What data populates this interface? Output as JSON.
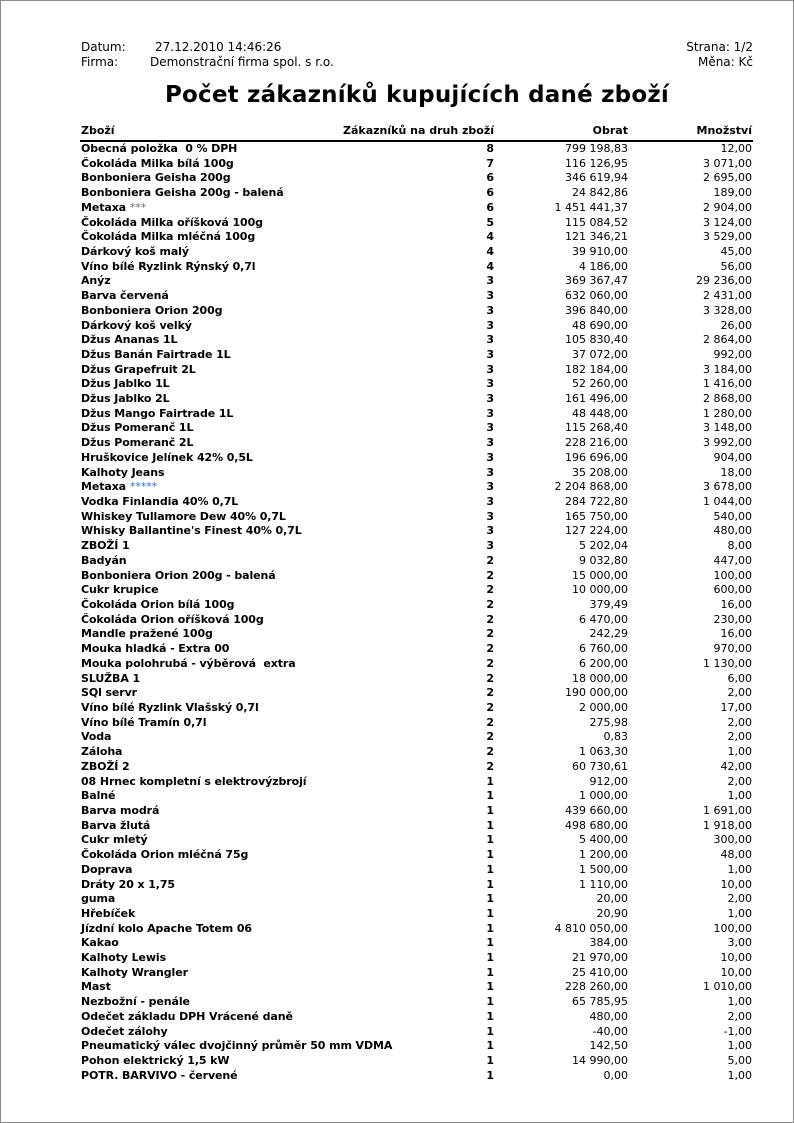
{
  "header": {
    "date_label": "Datum:",
    "date_value": "27.12.2010 14:46:26",
    "company_label": "Firma:",
    "company_value": "Demonstrační firma spol. s r.o.",
    "page": "Strana: 1/2",
    "currency": "Měna: Kč"
  },
  "title": "Počet zákazníků kupujících dané zboží",
  "columns": {
    "name": "Zboží",
    "customers": "Zákazníků na druh zboží",
    "turnover": "Obrat",
    "quantity": "Množství"
  },
  "colors": {
    "stars_gray": "#707070",
    "stars_blue": "#1f6fd0"
  },
  "rows": [
    {
      "name": "Obecná položka  0 % DPH",
      "count": "8",
      "turnover": "799 198,83",
      "qty": "12,00"
    },
    {
      "name": "Čokoláda Milka bílá 100g",
      "count": "7",
      "turnover": "116 126,95",
      "qty": "3 071,00"
    },
    {
      "name": "Bonboniera Geisha 200g",
      "count": "6",
      "turnover": "346 619,94",
      "qty": "2 695,00"
    },
    {
      "name": "Bonboniera Geisha 200g - balená",
      "count": "6",
      "turnover": "24 842,86",
      "qty": "189,00"
    },
    {
      "name": "Metaxa",
      "suffix": "***",
      "suffix_color": "gray",
      "count": "6",
      "turnover": "1 451 441,37",
      "qty": "2 904,00"
    },
    {
      "name": "Čokoláda Milka oříšková 100g",
      "count": "5",
      "turnover": "115 084,52",
      "qty": "3 124,00"
    },
    {
      "name": "Čokoláda Milka mléčná 100g",
      "count": "4",
      "turnover": "121 346,21",
      "qty": "3 529,00"
    },
    {
      "name": "Dárkový koš malý",
      "count": "4",
      "turnover": "39 910,00",
      "qty": "45,00"
    },
    {
      "name": "Víno bílé Ryzlink Rýnský 0,7l",
      "count": "4",
      "turnover": "4 186,00",
      "qty": "56,00"
    },
    {
      "name": "Anýz",
      "count": "3",
      "turnover": "369 367,47",
      "qty": "29 236,00"
    },
    {
      "name": "Barva červená",
      "count": "3",
      "turnover": "632 060,00",
      "qty": "2 431,00"
    },
    {
      "name": "Bonboniera Orion 200g",
      "count": "3",
      "turnover": "396 840,00",
      "qty": "3 328,00"
    },
    {
      "name": "Dárkový koš velký",
      "count": "3",
      "turnover": "48 690,00",
      "qty": "26,00"
    },
    {
      "name": "Džus Ananas 1L",
      "count": "3",
      "turnover": "105 830,40",
      "qty": "2 864,00"
    },
    {
      "name": "Džus Banán Fairtrade 1L",
      "count": "3",
      "turnover": "37 072,00",
      "qty": "992,00"
    },
    {
      "name": "Džus Grapefruit 2L",
      "count": "3",
      "turnover": "182 184,00",
      "qty": "3 184,00"
    },
    {
      "name": "Džus Jablko 1L",
      "count": "3",
      "turnover": "52 260,00",
      "qty": "1 416,00"
    },
    {
      "name": "Džus Jablko 2L",
      "count": "3",
      "turnover": "161 496,00",
      "qty": "2 868,00"
    },
    {
      "name": "Džus Mango Fairtrade 1L",
      "count": "3",
      "turnover": "48 448,00",
      "qty": "1 280,00"
    },
    {
      "name": "Džus Pomeranč 1L",
      "count": "3",
      "turnover": "115 268,40",
      "qty": "3 148,00"
    },
    {
      "name": "Džus Pomeranč 2L",
      "count": "3",
      "turnover": "228 216,00",
      "qty": "3 992,00"
    },
    {
      "name": "Hruškovice Jelínek 42% 0,5L",
      "count": "3",
      "turnover": "196 696,00",
      "qty": "904,00"
    },
    {
      "name": "Kalhoty Jeans",
      "count": "3",
      "turnover": "35 208,00",
      "qty": "18,00"
    },
    {
      "name": "Metaxa",
      "suffix": "*****",
      "suffix_color": "blue",
      "count": "3",
      "turnover": "2 204 868,00",
      "qty": "3 678,00"
    },
    {
      "name": "Vodka Finlandia 40% 0,7L",
      "count": "3",
      "turnover": "284 722,80",
      "qty": "1 044,00"
    },
    {
      "name": "Whiskey Tullamore Dew 40% 0,7L",
      "count": "3",
      "turnover": "165 750,00",
      "qty": "540,00"
    },
    {
      "name": "Whisky Ballantine's Finest 40% 0,7L",
      "count": "3",
      "turnover": "127 224,00",
      "qty": "480,00"
    },
    {
      "name": "ZBOŽÍ 1",
      "count": "3",
      "turnover": "5 202,04",
      "qty": "8,00"
    },
    {
      "name": "Badyán",
      "count": "2",
      "turnover": "9 032,80",
      "qty": "447,00"
    },
    {
      "name": "Bonboniera Orion 200g - balená",
      "count": "2",
      "turnover": "15 000,00",
      "qty": "100,00"
    },
    {
      "name": "Cukr krupice",
      "count": "2",
      "turnover": "10 000,00",
      "qty": "600,00"
    },
    {
      "name": "Čokoláda Orion bílá 100g",
      "count": "2",
      "turnover": "379,49",
      "qty": "16,00"
    },
    {
      "name": "Čokoláda Orion oříšková 100g",
      "count": "2",
      "turnover": "6 470,00",
      "qty": "230,00"
    },
    {
      "name": "Mandle pražené 100g",
      "count": "2",
      "turnover": "242,29",
      "qty": "16,00"
    },
    {
      "name": "Mouka hladká - Extra 00",
      "count": "2",
      "turnover": "6 760,00",
      "qty": "970,00"
    },
    {
      "name": "Mouka polohrubá - výběrová  extra",
      "count": "2",
      "turnover": "6 200,00",
      "qty": "1 130,00"
    },
    {
      "name": "SLUŽBA 1",
      "count": "2",
      "turnover": "18 000,00",
      "qty": "6,00"
    },
    {
      "name": "SQl servr",
      "count": "2",
      "turnover": "190 000,00",
      "qty": "2,00"
    },
    {
      "name": "Víno bílé Ryzlink Vlašský 0,7l",
      "count": "2",
      "turnover": "2 000,00",
      "qty": "17,00"
    },
    {
      "name": "Víno bílé Tramín 0,7l",
      "count": "2",
      "turnover": "275,98",
      "qty": "2,00"
    },
    {
      "name": "Voda",
      "count": "2",
      "turnover": "0,83",
      "qty": "2,00"
    },
    {
      "name": "Záloha",
      "count": "2",
      "turnover": "1 063,30",
      "qty": "1,00"
    },
    {
      "name": "ZBOŽÍ 2",
      "count": "2",
      "turnover": "60 730,61",
      "qty": "42,00"
    },
    {
      "name": "08 Hrnec kompletní s elektrovýzbrojí",
      "count": "1",
      "turnover": "912,00",
      "qty": "2,00"
    },
    {
      "name": "Balné",
      "count": "1",
      "turnover": "1 000,00",
      "qty": "1,00"
    },
    {
      "name": "Barva modrá",
      "count": "1",
      "turnover": "439 660,00",
      "qty": "1 691,00"
    },
    {
      "name": "Barva žlutá",
      "count": "1",
      "turnover": "498 680,00",
      "qty": "1 918,00"
    },
    {
      "name": "Cukr mletý",
      "count": "1",
      "turnover": "5 400,00",
      "qty": "300,00"
    },
    {
      "name": "Čokoláda Orion mléčná 75g",
      "count": "1",
      "turnover": "1 200,00",
      "qty": "48,00"
    },
    {
      "name": "Doprava",
      "count": "1",
      "turnover": "1 500,00",
      "qty": "1,00"
    },
    {
      "name": "Dráty 20 x 1,75",
      "count": "1",
      "turnover": "1 110,00",
      "qty": "10,00"
    },
    {
      "name": "guma",
      "count": "1",
      "turnover": "20,00",
      "qty": "2,00"
    },
    {
      "name": "Hřebíček",
      "count": "1",
      "turnover": "20,90",
      "qty": "1,00"
    },
    {
      "name": "Jízdní kolo Apache Totem 06",
      "count": "1",
      "turnover": "4 810 050,00",
      "qty": "100,00"
    },
    {
      "name": "Kakao",
      "count": "1",
      "turnover": "384,00",
      "qty": "3,00"
    },
    {
      "name": "Kalhoty Lewis",
      "count": "1",
      "turnover": "21 970,00",
      "qty": "10,00"
    },
    {
      "name": "Kalhoty Wrangler",
      "count": "1",
      "turnover": "25 410,00",
      "qty": "10,00"
    },
    {
      "name": "Mast",
      "count": "1",
      "turnover": "228 260,00",
      "qty": "1 010,00"
    },
    {
      "name": "Nezbožní - penále",
      "count": "1",
      "turnover": "65 785,95",
      "qty": "1,00"
    },
    {
      "name": "Odečet základu DPH Vrácené daně",
      "count": "1",
      "turnover": "480,00",
      "qty": "2,00"
    },
    {
      "name": "Odečet zálohy",
      "count": "1",
      "turnover": "-40,00",
      "qty": "-1,00"
    },
    {
      "name": "Pneumatický válec dvojčinný průměr 50 mm VDMA",
      "count": "1",
      "turnover": "142,50",
      "qty": "1,00"
    },
    {
      "name": "Pohon elektrický 1,5 kW",
      "count": "1",
      "turnover": "14 990,00",
      "qty": "5,00"
    },
    {
      "name": "POTR. BARVIVO - červené",
      "count": "1",
      "turnover": "0,00",
      "qty": "1,00"
    }
  ]
}
